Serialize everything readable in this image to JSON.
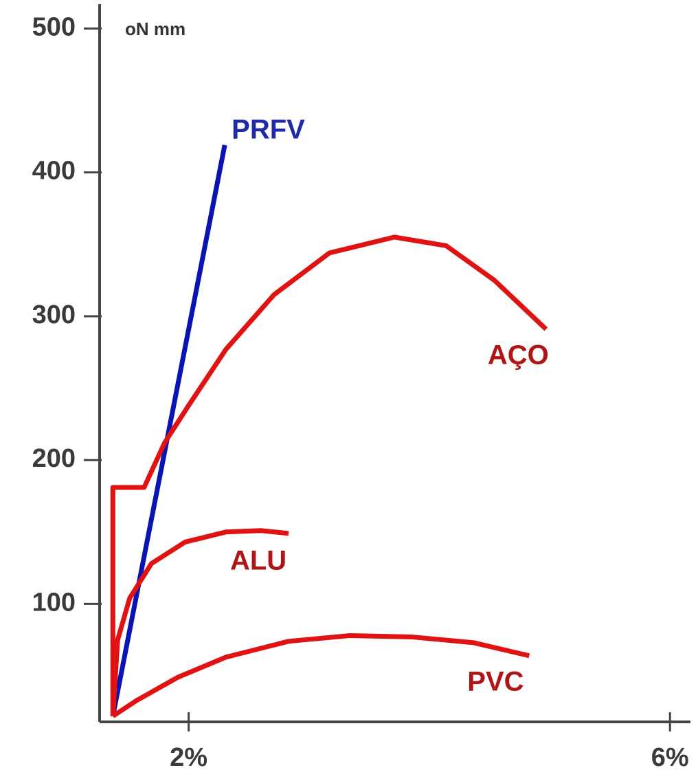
{
  "chart_data": {
    "type": "line",
    "y_label": "oN mm",
    "xlim": [
      1.26,
      6.17
    ],
    "xticks": [
      {
        "value": 2,
        "label": "2%"
      },
      {
        "value": 6,
        "label": "6%"
      }
    ],
    "ylim": [
      18,
      516
    ],
    "yticks": [
      100,
      200,
      300,
      400,
      500
    ],
    "series": [
      {
        "name": "PRFV",
        "color": "#0a14b4",
        "x": [
          1.37,
          2.3
        ],
        "values": [
          22,
          419
        ]
      },
      {
        "name": "AÇO",
        "color": "#e01212",
        "x": [
          1.37,
          1.37,
          1.63,
          1.8,
          2.0,
          2.31,
          2.71,
          3.17,
          3.71,
          4.14,
          4.54,
          4.97
        ],
        "values": [
          22,
          181,
          181,
          212,
          238,
          277,
          315,
          344,
          355,
          349,
          325,
          291
        ]
      },
      {
        "name": "ALU",
        "color": "#e01212",
        "x": [
          1.37,
          1.41,
          1.51,
          1.69,
          1.97,
          2.31,
          2.6,
          2.83
        ],
        "values": [
          22,
          75,
          104,
          128,
          143,
          150,
          151,
          149
        ]
      },
      {
        "name": "PVC",
        "color": "#e01212",
        "x": [
          1.37,
          1.57,
          1.91,
          2.31,
          2.83,
          3.34,
          3.86,
          4.37,
          4.83
        ],
        "values": [
          22,
          33,
          49,
          63,
          74,
          78,
          77,
          73,
          64
        ]
      }
    ]
  }
}
